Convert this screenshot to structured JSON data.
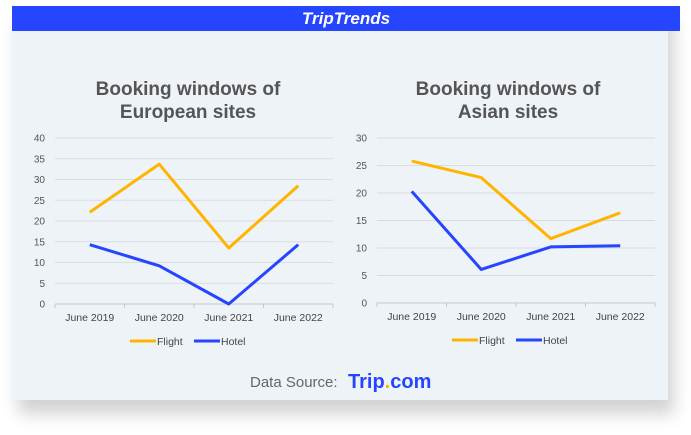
{
  "header": {
    "title": "TripTrends"
  },
  "footer": {
    "source_label": "Data Source:",
    "brand_a": "Trip",
    "brand_dot": ".",
    "brand_b": "com"
  },
  "colors": {
    "flight": "#ffb400",
    "hotel": "#2546fe",
    "header": "#2546fe"
  },
  "chart_data": [
    {
      "type": "line",
      "title": "Booking windows of European sites",
      "title_lines": [
        "Booking windows of",
        "European sites"
      ],
      "categories": [
        "June 2019",
        "June 2020",
        "June 2021",
        "June 2022"
      ],
      "ylim": [
        0,
        40
      ],
      "yticks": [
        0,
        5,
        10,
        15,
        20,
        25,
        30,
        35,
        40
      ],
      "grid": true,
      "legend": "bottom",
      "series": [
        {
          "name": "Flight",
          "values": [
            22.1,
            33.7,
            13.5,
            28.5
          ]
        },
        {
          "name": "Hotel",
          "values": [
            14.3,
            9.2,
            0,
            14.3
          ]
        }
      ]
    },
    {
      "type": "line",
      "title": "Booking windows of Asian sites",
      "title_lines": [
        "Booking windows of",
        "Asian sites"
      ],
      "categories": [
        "June 2019",
        "June 2020",
        "June 2021",
        "June 2022"
      ],
      "ylim": [
        0,
        30
      ],
      "yticks": [
        0,
        5,
        10,
        15,
        20,
        25,
        30
      ],
      "grid": true,
      "legend": "bottom",
      "series": [
        {
          "name": "Flight",
          "values": [
            25.8,
            22.8,
            11.7,
            16.4
          ]
        },
        {
          "name": "Hotel",
          "values": [
            20.3,
            6.1,
            10.2,
            10.4
          ]
        }
      ]
    }
  ]
}
